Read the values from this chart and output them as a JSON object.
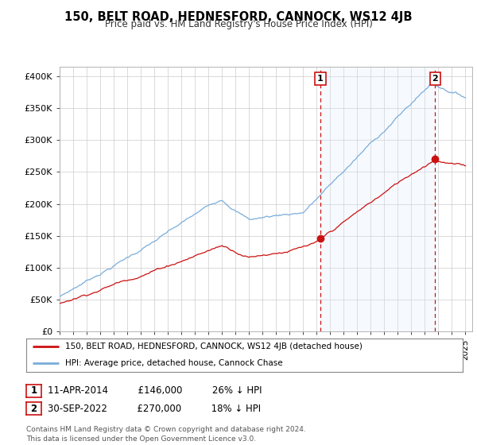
{
  "title": "150, BELT ROAD, HEDNESFORD, CANNOCK, WS12 4JB",
  "subtitle": "Price paid vs. HM Land Registry's House Price Index (HPI)",
  "ylabel_ticks": [
    "£0",
    "£50K",
    "£100K",
    "£150K",
    "£200K",
    "£250K",
    "£300K",
    "£350K",
    "£400K"
  ],
  "ytick_values": [
    0,
    50000,
    100000,
    150000,
    200000,
    250000,
    300000,
    350000,
    400000
  ],
  "ylim": [
    0,
    415000
  ],
  "xlim_start": 1995.0,
  "xlim_end": 2025.5,
  "hpi_color": "#7aadda",
  "price_color": "#cc1111",
  "marker1_date": 2014.27,
  "marker1_price": 146000,
  "marker2_date": 2022.75,
  "marker2_price": 270000,
  "vline1_x": 2014.27,
  "vline2_x": 2022.75,
  "legend_line1": "150, BELT ROAD, HEDNESFORD, CANNOCK, WS12 4JB (detached house)",
  "legend_line2": "HPI: Average price, detached house, Cannock Chase",
  "footer": "Contains HM Land Registry data © Crown copyright and database right 2024.\nThis data is licensed under the Open Government Licence v3.0.",
  "background_color": "#ffffff",
  "grid_color": "#cccccc",
  "span_color": "#ddeeff"
}
